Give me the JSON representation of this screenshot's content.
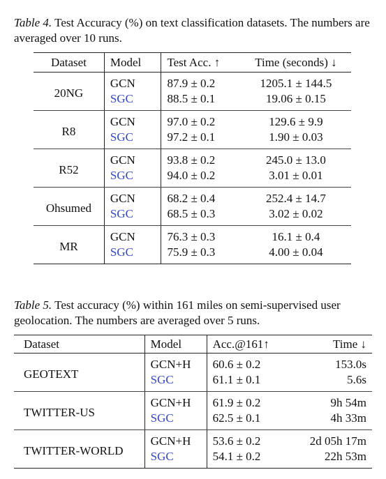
{
  "tables": [
    {
      "caption_label": "Table 4.",
      "caption": "Test Accuracy (%) on text classification datasets. The numbers are averaged over 10 runs.",
      "header": [
        "Dataset",
        "Model",
        "Test Acc. ↑",
        "Time (seconds) ↓"
      ],
      "groups": [
        {
          "dataset": "20NG",
          "rows": [
            [
              "GCN",
              "87.9 ± 0.2",
              "1205.1 ± 144.5"
            ],
            [
              "SGC",
              "88.5 ± 0.1",
              "19.06 ± 0.15"
            ]
          ]
        },
        {
          "dataset": "R8",
          "rows": [
            [
              "GCN",
              "97.0 ± 0.2",
              "129.6 ± 9.9"
            ],
            [
              "SGC",
              "97.2 ± 0.1",
              "1.90 ± 0.03"
            ]
          ]
        },
        {
          "dataset": "R52",
          "rows": [
            [
              "GCN",
              "93.8 ± 0.2",
              "245.0 ± 13.0"
            ],
            [
              "SGC",
              "94.0 ± 0.2",
              "3.01 ± 0.01"
            ]
          ]
        },
        {
          "dataset": "Ohsumed",
          "rows": [
            [
              "GCN",
              "68.2 ± 0.4",
              "252.4 ± 14.7"
            ],
            [
              "SGC",
              "68.5 ± 0.3",
              "3.02 ± 0.02"
            ]
          ]
        },
        {
          "dataset": "MR",
          "rows": [
            [
              "GCN",
              "76.3 ± 0.3",
              "16.1 ± 0.4"
            ],
            [
              "SGC",
              "75.9 ± 0.3",
              "4.00 ± 0.04"
            ]
          ]
        }
      ]
    },
    {
      "caption_label": "Table 5.",
      "caption": "Test accuracy (%) within 161 miles on semi-supervised user geolocation. The numbers are averaged over 5 runs.",
      "header": [
        "Dataset",
        "Model",
        "Acc.@161↑",
        "Time ↓"
      ],
      "groups": [
        {
          "dataset": "GEOTEXT",
          "rows": [
            [
              "GCN+H",
              "60.6 ± 0.2",
              "153.0s"
            ],
            [
              "SGC",
              "61.1 ± 0.1",
              "5.6s"
            ]
          ]
        },
        {
          "dataset": "TWITTER-US",
          "rows": [
            [
              "GCN+H",
              "61.9 ± 0.2",
              "9h 54m"
            ],
            [
              "SGC",
              "62.5 ± 0.1",
              "4h 33m"
            ]
          ]
        },
        {
          "dataset": "TWITTER-WORLD",
          "rows": [
            [
              "GCN+H",
              "53.6 ± 0.2",
              "2d 05h 17m"
            ],
            [
              "SGC",
              "54.1 ± 0.2",
              "22h 53m"
            ]
          ]
        }
      ]
    }
  ]
}
